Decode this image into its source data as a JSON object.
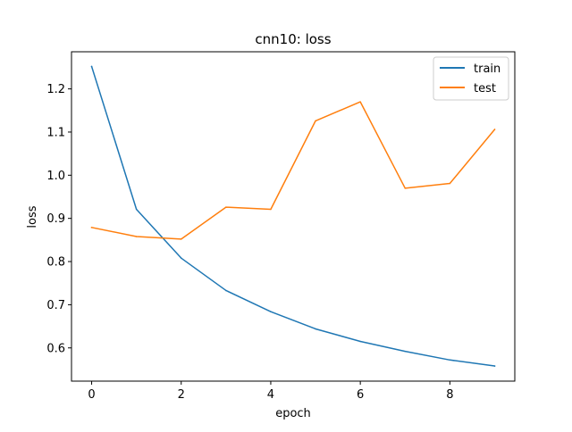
{
  "chart_data": {
    "type": "line",
    "title": "cnn10: loss",
    "xlabel": "epoch",
    "ylabel": "loss",
    "x": [
      0,
      1,
      2,
      3,
      4,
      5,
      6,
      7,
      8,
      9
    ],
    "xlim": [
      -0.45,
      9.45
    ],
    "ylim": [
      0.523,
      1.286
    ],
    "xticks": [
      0,
      2,
      4,
      6,
      8
    ],
    "yticks": [
      0.6,
      0.7,
      0.8,
      0.9,
      1.0,
      1.1,
      1.2
    ],
    "grid": false,
    "legend_position": "top-right",
    "series": [
      {
        "name": "train",
        "color": "#1f77b4",
        "values": [
          1.252,
          0.921,
          0.808,
          0.733,
          0.684,
          0.644,
          0.615,
          0.592,
          0.572,
          0.558
        ]
      },
      {
        "name": "test",
        "color": "#ff7f0e",
        "values": [
          0.879,
          0.858,
          0.852,
          0.926,
          0.921,
          1.126,
          1.17,
          0.97,
          0.981,
          1.106
        ]
      }
    ]
  }
}
